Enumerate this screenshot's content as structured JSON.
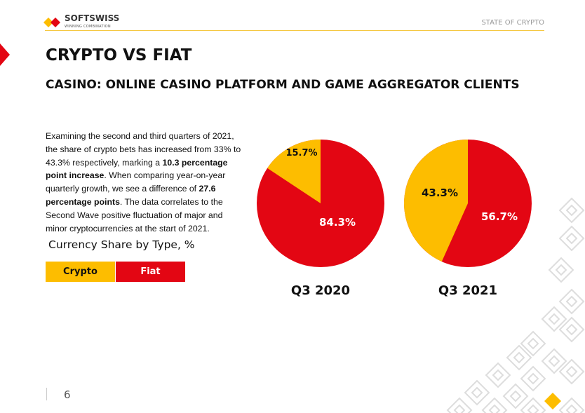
{
  "header": {
    "brand": "SOFTSWISS",
    "brand_tagline": "WINNING COMBINATION",
    "section": "STATE OF CRYPTO"
  },
  "title": "CRYPTO VS FIAT",
  "subtitle": "CASINO: ONLINE CASINO PLATFORM AND GAME AGGREGATOR CLIENTS",
  "paragraph": {
    "p1": "Examining the second and third quarters of 2021, the share of crypto bets has increased from 33% to 43.3% respectively, marking a ",
    "b1": "10.3 percentage point increase",
    "p2": ". When comparing year-on-year quarterly growth, we see a difference of ",
    "b2": "27.6 percentage points",
    "p3": ". The data correlates to the Second Wave positive fluctuation of major and minor cryptocurrencies at the start of 2021."
  },
  "page_number": "6",
  "colors": {
    "crypto": "#fdbd00",
    "fiat": "#e30613"
  },
  "chart_data": {
    "type": "pie",
    "title": "Currency Share by Type, %",
    "legend": [
      "Crypto",
      "Fiat"
    ],
    "charts": [
      {
        "label": "Q3 2020",
        "values": [
          15.7,
          84.3
        ],
        "labels": [
          "15.7%",
          "84.3%"
        ]
      },
      {
        "label": "Q3 2021",
        "values": [
          43.3,
          56.7
        ],
        "labels": [
          "43.3%",
          "56.7%"
        ]
      }
    ]
  }
}
